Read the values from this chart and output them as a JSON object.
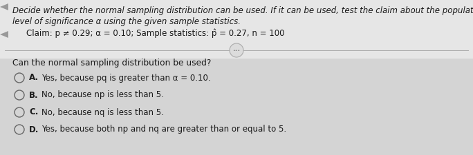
{
  "bg_color_top": "#e8e8e8",
  "bg_color_bottom": "#d8d8d8",
  "bg_overall": "#cccccc",
  "header_line1": "Decide whether the normal sampling distribution can be used. If it can be used, test the claim about the population proportion p at the given",
  "header_line2": "level of significance α using the given sample statistics.",
  "claim_line": "Claim: p ≠ 0.29; α = 0.10; Sample statistics: p̂ = 0.27, n = 100",
  "question": "Can the normal sampling distribution be used?",
  "options": [
    {
      "label": "A.",
      "text": "Yes, because pq is greater than α = 0.10."
    },
    {
      "label": "B.",
      "text": "No, because np is less than 5."
    },
    {
      "label": "C.",
      "text": "No, because nq is less than 5."
    },
    {
      "label": "D.",
      "text": "Yes, because both np and nq are greater than or equal to 5."
    }
  ],
  "font_color": "#1a1a1a",
  "font_size_header": 8.5,
  "font_size_claim": 8.5,
  "font_size_question": 8.8,
  "font_size_options": 8.5,
  "divider_color": "#aaaaaa",
  "circle_color": "#666666",
  "dots_color": "#777777",
  "left_marker_color": "#999999"
}
